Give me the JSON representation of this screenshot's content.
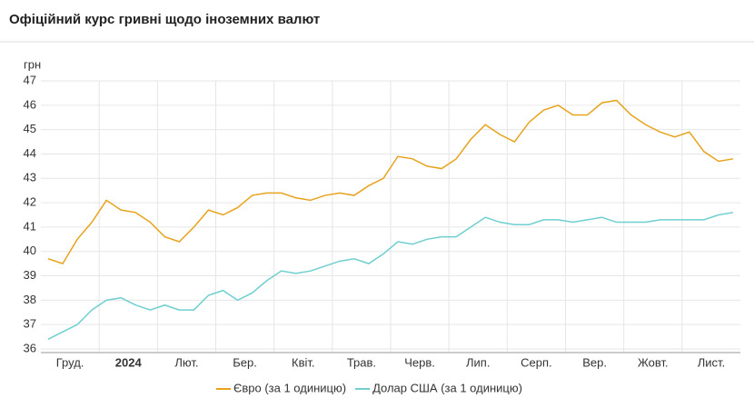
{
  "title": "Офіційний курс гривні щодо іноземних валют",
  "chart_data": {
    "type": "line",
    "y_label": "грн",
    "categories": [
      null,
      "Груд.",
      null,
      null,
      null,
      "2024",
      null,
      null,
      null,
      "Лют.",
      null,
      null,
      null,
      "Бер.",
      null,
      null,
      null,
      "Квіт.",
      null,
      null,
      null,
      "Трав.",
      null,
      null,
      null,
      "Черв.",
      null,
      null,
      null,
      "Лип.",
      null,
      null,
      null,
      "Серп.",
      null,
      null,
      null,
      "Вер.",
      null,
      null,
      null,
      "Жовт.",
      null,
      null,
      null,
      "Лист.",
      null,
      null
    ],
    "series": [
      {
        "name": "Євро (за 1 одиницю)",
        "color": "#e8a21c",
        "values": [
          39.7,
          39.5,
          40.5,
          41.2,
          42.1,
          41.7,
          41.6,
          41.2,
          40.6,
          40.4,
          41.0,
          41.7,
          41.5,
          41.8,
          42.3,
          42.4,
          42.4,
          42.2,
          42.1,
          42.3,
          42.4,
          42.3,
          42.7,
          43.0,
          43.9,
          43.8,
          43.5,
          43.4,
          43.8,
          44.6,
          45.2,
          44.8,
          44.5,
          45.3,
          45.8,
          46.0,
          45.6,
          45.6,
          46.1,
          46.2,
          45.6,
          45.2,
          44.9,
          44.7,
          44.9,
          44.1,
          43.7,
          43.8
        ]
      },
      {
        "name": "Долар США (за 1 одиницю)",
        "color": "#6fcfd0",
        "values": [
          36.4,
          36.7,
          37.0,
          37.6,
          38.0,
          38.1,
          37.8,
          37.6,
          37.8,
          37.6,
          37.6,
          38.2,
          38.4,
          38.0,
          38.3,
          38.8,
          39.2,
          39.1,
          39.2,
          39.4,
          39.6,
          39.7,
          39.5,
          39.9,
          40.4,
          40.3,
          40.5,
          40.6,
          40.6,
          41.0,
          41.4,
          41.2,
          41.1,
          41.1,
          41.3,
          41.3,
          41.2,
          41.3,
          41.4,
          41.2,
          41.2,
          41.2,
          41.3,
          41.3,
          41.3,
          41.3,
          41.5,
          41.6
        ]
      }
    ],
    "ylim": [
      36,
      47
    ],
    "yticks": [
      36,
      37,
      38,
      39,
      40,
      41,
      42,
      43,
      44,
      45,
      46,
      47
    ],
    "grid": true
  }
}
